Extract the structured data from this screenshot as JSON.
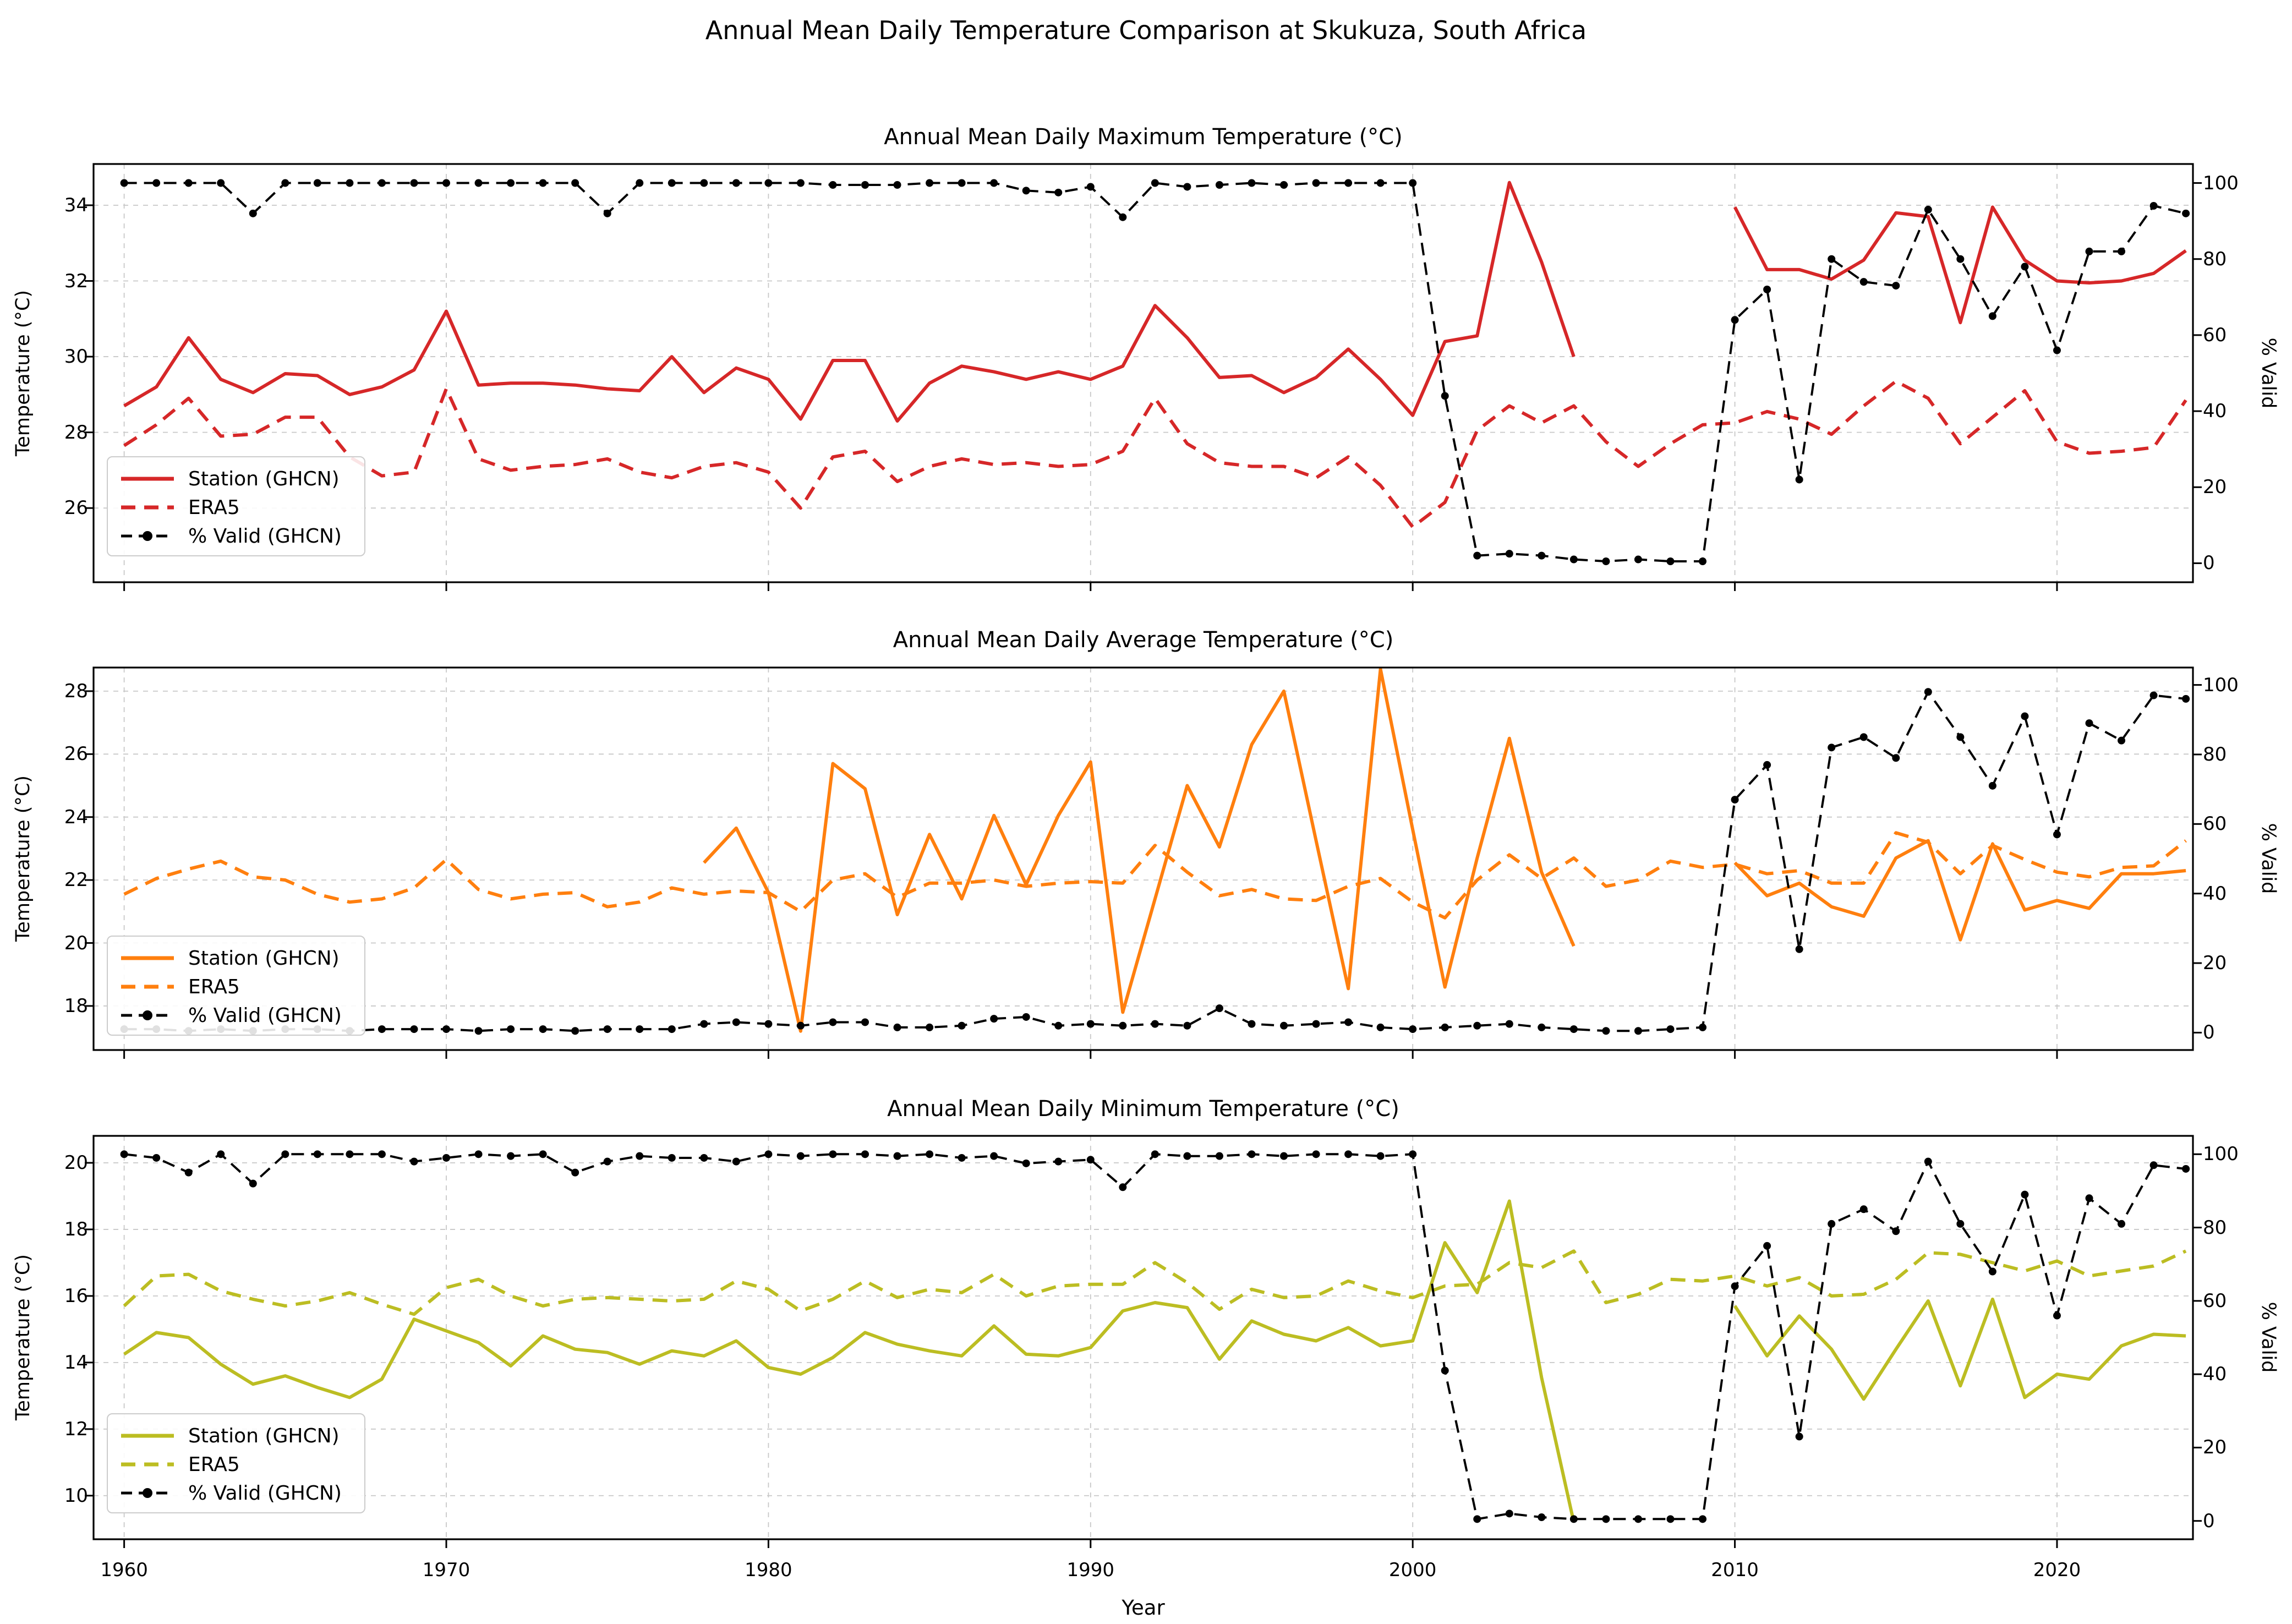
{
  "figure": {
    "title": "Annual Mean Daily Temperature Comparison at Skukuza, South Africa",
    "xlabel": "Year"
  },
  "legend": {
    "station": "Station (GHCN)",
    "era5": "ERA5",
    "pct": "% Valid (GHCN)"
  },
  "axes": {
    "x_ticks": [
      1960,
      1970,
      1980,
      1990,
      2000,
      2010,
      2020
    ],
    "xlim": [
      1959.05,
      2024.22
    ],
    "pct_ticks": [
      0,
      20,
      40,
      60,
      80,
      100
    ],
    "pct_lim": [
      -5,
      105
    ]
  },
  "chart_data": [
    {
      "type": "line",
      "title": "Annual Mean Daily Maximum Temperature (°C)",
      "ylabel": "Temperature (°C)",
      "ylabel_right": "% Valid",
      "y_ticks": [
        26,
        28,
        30,
        32,
        34
      ],
      "ylim": [
        24.04,
        35.09
      ],
      "x_start_year": 1960,
      "station_color": "#d62728",
      "era5_color": "#d62728",
      "pct_color": "#000000",
      "series": [
        {
          "name": "Station (GHCN)",
          "style": "solid",
          "axis": "temp",
          "values": [
            28.7,
            29.2,
            30.5,
            29.4,
            29.05,
            29.55,
            29.5,
            29.0,
            29.2,
            29.65,
            31.2,
            29.25,
            29.3,
            29.3,
            29.25,
            29.15,
            29.1,
            30.0,
            29.05,
            29.7,
            29.4,
            28.35,
            29.9,
            29.9,
            28.3,
            29.3,
            29.75,
            29.6,
            29.4,
            29.6,
            29.4,
            29.75,
            31.35,
            30.5,
            29.45,
            29.5,
            29.05,
            29.45,
            30.2,
            29.4,
            28.45,
            30.4,
            30.55,
            34.6,
            32.5,
            30.0,
            null,
            null,
            null,
            null,
            33.95,
            32.3,
            32.3,
            32.05,
            32.55,
            33.8,
            33.7,
            30.9,
            33.95,
            32.55,
            32.0,
            31.95,
            32.0,
            32.2,
            32.8
          ]
        },
        {
          "name": "ERA5",
          "style": "dashed",
          "axis": "temp",
          "values": [
            27.65,
            28.2,
            28.9,
            27.9,
            27.95,
            28.4,
            28.4,
            27.35,
            26.85,
            26.95,
            29.15,
            27.3,
            27.0,
            27.1,
            27.15,
            27.3,
            26.95,
            26.8,
            27.1,
            27.2,
            26.95,
            26.0,
            27.35,
            27.5,
            26.7,
            27.1,
            27.3,
            27.15,
            27.2,
            27.1,
            27.15,
            27.5,
            28.9,
            27.7,
            27.2,
            27.1,
            27.1,
            26.8,
            27.35,
            26.6,
            25.5,
            26.15,
            28.05,
            28.7,
            28.25,
            28.7,
            27.75,
            27.1,
            27.7,
            28.2,
            28.25,
            28.55,
            28.35,
            27.95,
            28.7,
            29.35,
            28.9,
            27.7,
            28.4,
            29.1,
            27.75,
            27.45,
            27.5,
            27.6,
            28.85
          ]
        },
        {
          "name": "% Valid (GHCN)",
          "style": "dashed-marker",
          "axis": "pct",
          "values": [
            100,
            100,
            100,
            100,
            92,
            100,
            100,
            100,
            100,
            100,
            100,
            100,
            100,
            100,
            100,
            92,
            100,
            100,
            100,
            100,
            100,
            100,
            99.5,
            99.5,
            99.5,
            100,
            100,
            100,
            98,
            97.5,
            99,
            91,
            100,
            99,
            99.5,
            100,
            99.5,
            100,
            100,
            100,
            100,
            44,
            2,
            2.5,
            2,
            1,
            0.5,
            1,
            0.5,
            0.5,
            64,
            72,
            22,
            80,
            74,
            73,
            93,
            80,
            65,
            78,
            56,
            82,
            82,
            94,
            92
          ]
        }
      ]
    },
    {
      "type": "line",
      "title": "Annual Mean Daily Average Temperature (°C)",
      "ylabel": "Temperature (°C)",
      "ylabel_right": "% Valid",
      "y_ticks": [
        18,
        20,
        22,
        24,
        26,
        28
      ],
      "ylim": [
        16.6,
        28.75
      ],
      "x_start_year": 1960,
      "station_color": "#ff7f0e",
      "era5_color": "#ff7f0e",
      "pct_color": "#000000",
      "series": [
        {
          "name": "Station (GHCN)",
          "style": "solid",
          "axis": "temp",
          "values": [
            null,
            null,
            null,
            null,
            null,
            null,
            null,
            null,
            null,
            null,
            null,
            null,
            null,
            null,
            null,
            null,
            null,
            null,
            22.55,
            23.65,
            21.6,
            17.2,
            25.7,
            24.9,
            20.9,
            23.45,
            21.4,
            24.05,
            21.85,
            24.05,
            25.75,
            17.8,
            21.4,
            25.0,
            23.05,
            26.3,
            28.0,
            23.25,
            18.55,
            28.7,
            23.6,
            18.6,
            22.7,
            26.5,
            22.25,
            19.9,
            null,
            null,
            null,
            null,
            22.55,
            21.5,
            21.9,
            21.15,
            20.85,
            22.7,
            23.25,
            20.1,
            23.15,
            21.05,
            21.35,
            21.1,
            22.2,
            22.2,
            22.3
          ]
        },
        {
          "name": "ERA5",
          "style": "dashed",
          "axis": "temp",
          "values": [
            21.55,
            22.05,
            22.35,
            22.6,
            22.1,
            22.0,
            21.55,
            21.3,
            21.4,
            21.75,
            22.65,
            21.7,
            21.4,
            21.55,
            21.6,
            21.15,
            21.3,
            21.75,
            21.55,
            21.65,
            21.6,
            21.0,
            22.0,
            22.2,
            21.45,
            21.9,
            21.9,
            22.0,
            21.8,
            21.9,
            21.95,
            21.9,
            23.1,
            22.25,
            21.5,
            21.7,
            21.4,
            21.35,
            21.8,
            22.05,
            21.3,
            20.8,
            22.0,
            22.8,
            22.05,
            22.7,
            21.8,
            22.0,
            22.6,
            22.4,
            22.5,
            22.2,
            22.3,
            21.9,
            21.9,
            23.5,
            23.2,
            22.2,
            23.1,
            22.65,
            22.25,
            22.1,
            22.4,
            22.45,
            23.25
          ]
        },
        {
          "name": "% Valid (GHCN)",
          "style": "dashed-marker",
          "axis": "pct",
          "values": [
            1,
            1,
            0.5,
            1,
            0.5,
            1,
            1,
            0.5,
            1,
            1,
            1,
            0.5,
            1,
            1,
            0.5,
            1,
            1,
            1,
            2.5,
            3,
            2.5,
            2,
            3,
            3,
            1.5,
            1.5,
            2,
            4,
            4.5,
            2,
            2.5,
            2,
            2.5,
            2,
            7,
            2.5,
            2,
            2.5,
            3,
            1.5,
            1,
            1.5,
            2,
            2.5,
            1.5,
            1,
            0.5,
            0.5,
            1,
            1.5,
            67,
            77,
            24,
            82,
            85,
            79,
            98,
            85,
            71,
            91,
            57,
            89,
            84,
            97,
            96
          ]
        }
      ]
    },
    {
      "type": "line",
      "title": "Annual Mean Daily Minimum Temperature (°C)",
      "ylabel": "Temperature (°C)",
      "ylabel_right": "% Valid",
      "y_ticks": [
        10,
        12,
        14,
        16,
        18,
        20
      ],
      "ylim": [
        8.69,
        20.81
      ],
      "x_start_year": 1960,
      "station_color": "#bcbd22",
      "era5_color": "#bcbd22",
      "pct_color": "#000000",
      "series": [
        {
          "name": "Station (GHCN)",
          "style": "solid",
          "axis": "temp",
          "values": [
            14.25,
            14.9,
            14.75,
            13.95,
            13.35,
            13.6,
            13.25,
            12.95,
            13.5,
            15.3,
            14.95,
            14.6,
            13.9,
            14.8,
            14.4,
            14.3,
            13.95,
            14.35,
            14.2,
            14.65,
            13.85,
            13.65,
            14.15,
            14.9,
            14.55,
            14.35,
            14.2,
            15.1,
            14.25,
            14.2,
            14.45,
            15.55,
            15.8,
            15.65,
            14.1,
            15.25,
            14.85,
            14.65,
            15.05,
            14.5,
            14.65,
            17.6,
            16.1,
            18.85,
            13.55,
            9.2,
            null,
            null,
            null,
            null,
            15.7,
            14.2,
            15.4,
            14.4,
            12.9,
            14.4,
            15.85,
            13.3,
            15.9,
            12.95,
            13.65,
            13.5,
            14.5,
            14.85,
            14.8
          ]
        },
        {
          "name": "ERA5",
          "style": "dashed",
          "axis": "temp",
          "values": [
            15.7,
            16.6,
            16.65,
            16.15,
            15.9,
            15.7,
            15.85,
            16.1,
            15.75,
            15.45,
            16.25,
            16.5,
            16.0,
            15.7,
            15.9,
            15.95,
            15.9,
            15.85,
            15.9,
            16.45,
            16.2,
            15.55,
            15.9,
            16.45,
            15.95,
            16.2,
            16.1,
            16.65,
            16.0,
            16.3,
            16.35,
            16.35,
            17.0,
            16.4,
            15.6,
            16.2,
            15.95,
            16.0,
            16.45,
            16.15,
            15.95,
            16.3,
            16.35,
            17.0,
            16.85,
            17.35,
            15.8,
            16.05,
            16.5,
            16.45,
            16.6,
            16.3,
            16.55,
            16.0,
            16.05,
            16.5,
            17.3,
            17.25,
            17.0,
            16.75,
            17.05,
            16.6,
            16.75,
            16.9,
            17.35
          ]
        },
        {
          "name": "% Valid (GHCN)",
          "style": "dashed-marker",
          "axis": "pct",
          "values": [
            100,
            99,
            95,
            100,
            92,
            100,
            100,
            100,
            100,
            98,
            99,
            100,
            99.5,
            100,
            95,
            98,
            99.5,
            99,
            99,
            98,
            100,
            99.5,
            100,
            100,
            99.5,
            100,
            99,
            99.5,
            97.5,
            98,
            98.5,
            91,
            100,
            99.5,
            99.5,
            100,
            99.5,
            100,
            100,
            99.5,
            100,
            41,
            0.5,
            2,
            1,
            0.5,
            0.5,
            0.5,
            0.5,
            0.5,
            64,
            75,
            23,
            81,
            85,
            79,
            98,
            81,
            68,
            89,
            56,
            88,
            81,
            97,
            96
          ]
        }
      ]
    }
  ]
}
